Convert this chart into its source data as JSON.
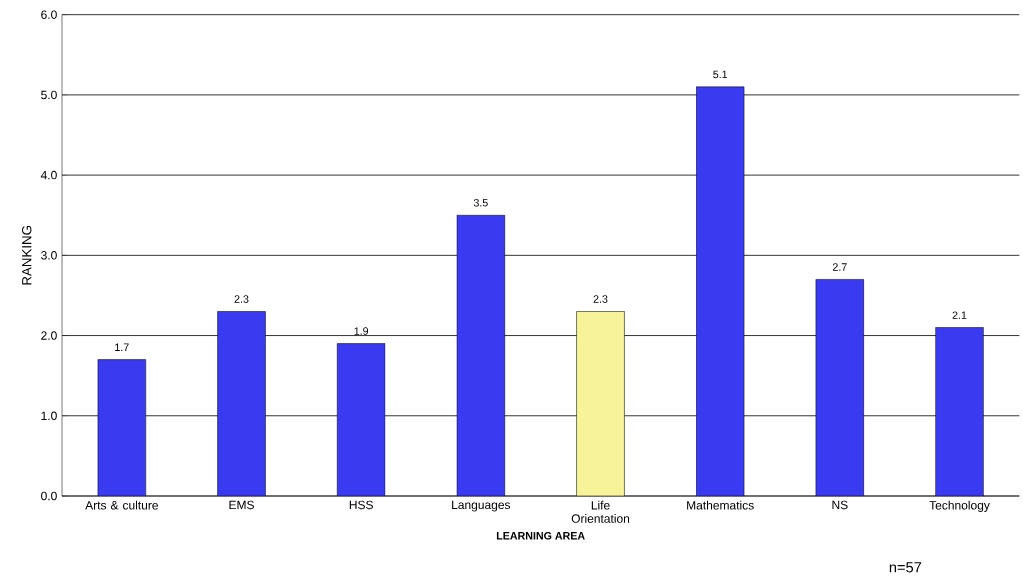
{
  "chart_data": {
    "type": "bar",
    "xlabel": "LEARNING AREA",
    "ylabel": "RANKING",
    "categories": [
      "Arts & culture",
      "EMS",
      "HSS",
      "Languages",
      "Life Orientation",
      "Mathematics",
      "NS",
      "Technology"
    ],
    "values": [
      1.7,
      2.3,
      1.9,
      3.5,
      2.3,
      5.1,
      2.7,
      2.1
    ],
    "colors": [
      "#3a3af0",
      "#3a3af0",
      "#3a3af0",
      "#3a3af0",
      "#f7f39a",
      "#3a3af0",
      "#3a3af0",
      "#3a3af0"
    ],
    "ylim": [
      0,
      6
    ],
    "yticks": [
      {
        "value": 0,
        "label": "0.0"
      },
      {
        "value": 1,
        "label": "1.0"
      },
      {
        "value": 2,
        "label": "2.0"
      },
      {
        "value": 3,
        "label": "3.0"
      },
      {
        "value": 4,
        "label": "4.0"
      },
      {
        "value": 5,
        "label": "5.0"
      },
      {
        "value": 6,
        "label": "6.0"
      }
    ],
    "grid": "y",
    "data_labels": true,
    "annotations": [
      "n=57"
    ]
  }
}
